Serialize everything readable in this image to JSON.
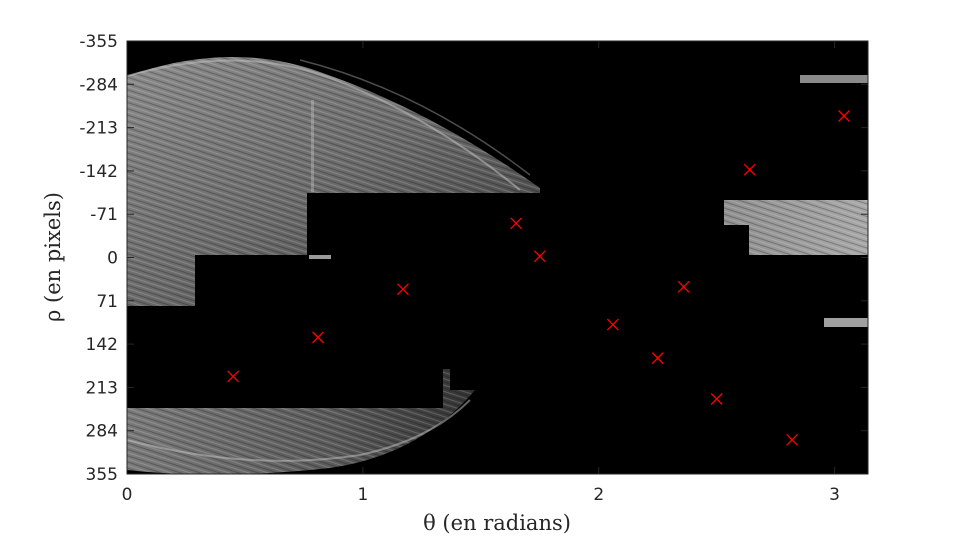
{
  "chart_data": {
    "type": "heatmap",
    "xlabel": "θ (en radians)",
    "ylabel": "ρ (en pixels)",
    "xlim": [
      0,
      3.1416
    ],
    "ylim": [
      -355,
      355
    ],
    "y_reversed": true,
    "x_ticks": [
      "0",
      "1",
      "2",
      "3"
    ],
    "x_tick_values": [
      0,
      1,
      2,
      3
    ],
    "y_ticks": [
      "-355",
      "-284",
      "-213",
      "-142",
      "-71",
      "0",
      "71",
      "142",
      "213",
      "284",
      "355"
    ],
    "y_tick_values": [
      -355,
      -284,
      -213,
      -142,
      -71,
      0,
      71,
      142,
      213,
      284,
      355
    ],
    "colormap": "gray",
    "marker_color": "#ff0000",
    "marker_symbol": "x",
    "peaks": [
      {
        "theta": 0.45,
        "rho": 195
      },
      {
        "theta": 0.81,
        "rho": 131
      },
      {
        "theta": 1.17,
        "rho": 52
      },
      {
        "theta": 1.65,
        "rho": -56
      },
      {
        "theta": 1.75,
        "rho": -2
      },
      {
        "theta": 2.06,
        "rho": 110
      },
      {
        "theta": 2.25,
        "rho": 165
      },
      {
        "theta": 2.36,
        "rho": 48
      },
      {
        "theta": 2.5,
        "rho": 232
      },
      {
        "theta": 2.64,
        "rho": -144
      },
      {
        "theta": 2.82,
        "rho": 299
      },
      {
        "theta": 3.04,
        "rho": -232
      }
    ]
  }
}
